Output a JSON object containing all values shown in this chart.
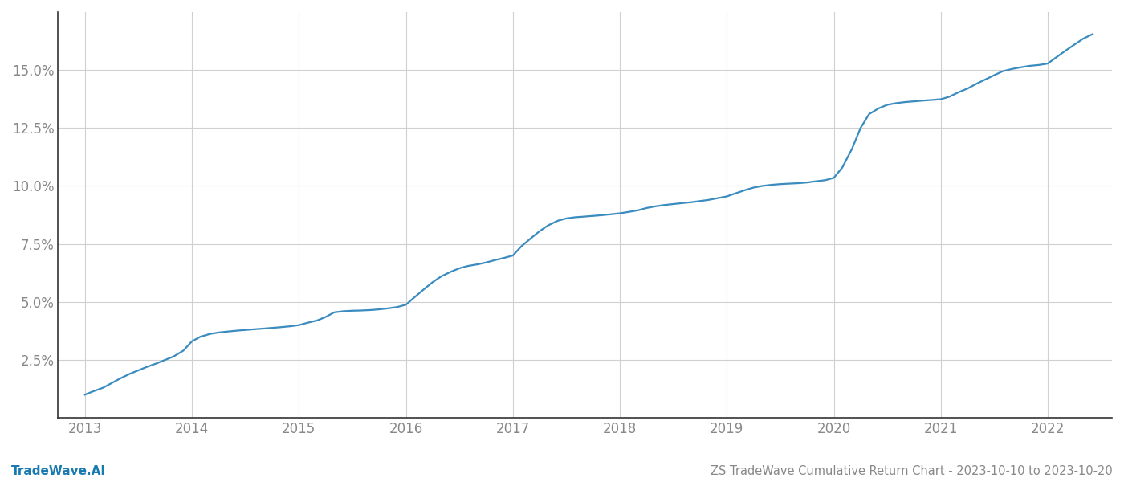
{
  "title": "ZS TradeWave Cumulative Return Chart - 2023-10-10 to 2023-10-20",
  "watermark": "TradeWave.AI",
  "line_color": "#3a8bbf",
  "background_color": "#ffffff",
  "grid_color": "#d0d0d0",
  "x_years": [
    2013,
    2014,
    2015,
    2016,
    2017,
    2018,
    2019,
    2020,
    2021,
    2022
  ],
  "x_data": [
    2013.0,
    2013.08,
    2013.17,
    2013.25,
    2013.33,
    2013.42,
    2013.5,
    2013.58,
    2013.67,
    2013.75,
    2013.83,
    2013.92,
    2014.0,
    2014.08,
    2014.17,
    2014.25,
    2014.33,
    2014.42,
    2014.5,
    2014.58,
    2014.67,
    2014.75,
    2014.83,
    2014.92,
    2015.0,
    2015.08,
    2015.17,
    2015.25,
    2015.33,
    2015.42,
    2015.5,
    2015.58,
    2015.67,
    2015.75,
    2015.83,
    2015.92,
    2016.0,
    2016.08,
    2016.17,
    2016.25,
    2016.33,
    2016.42,
    2016.5,
    2016.58,
    2016.67,
    2016.75,
    2016.83,
    2016.92,
    2017.0,
    2017.08,
    2017.17,
    2017.25,
    2017.33,
    2017.42,
    2017.5,
    2017.58,
    2017.67,
    2017.75,
    2017.83,
    2017.92,
    2018.0,
    2018.08,
    2018.17,
    2018.25,
    2018.33,
    2018.42,
    2018.5,
    2018.58,
    2018.67,
    2018.75,
    2018.83,
    2018.92,
    2019.0,
    2019.08,
    2019.17,
    2019.25,
    2019.33,
    2019.42,
    2019.5,
    2019.58,
    2019.67,
    2019.75,
    2019.83,
    2019.92,
    2020.0,
    2020.08,
    2020.17,
    2020.25,
    2020.33,
    2020.42,
    2020.5,
    2020.58,
    2020.67,
    2020.75,
    2020.83,
    2020.92,
    2021.0,
    2021.08,
    2021.17,
    2021.25,
    2021.33,
    2021.42,
    2021.5,
    2021.58,
    2021.67,
    2021.75,
    2021.83,
    2021.92,
    2022.0,
    2022.08,
    2022.17,
    2022.25,
    2022.33,
    2022.42
  ],
  "y_data": [
    1.0,
    1.15,
    1.3,
    1.5,
    1.7,
    1.9,
    2.05,
    2.2,
    2.35,
    2.5,
    2.65,
    2.9,
    3.3,
    3.5,
    3.62,
    3.68,
    3.72,
    3.76,
    3.79,
    3.82,
    3.85,
    3.88,
    3.91,
    3.95,
    4.0,
    4.1,
    4.2,
    4.35,
    4.55,
    4.6,
    4.62,
    4.63,
    4.65,
    4.68,
    4.72,
    4.78,
    4.88,
    5.2,
    5.55,
    5.85,
    6.1,
    6.3,
    6.45,
    6.55,
    6.62,
    6.7,
    6.8,
    6.9,
    7.0,
    7.4,
    7.75,
    8.05,
    8.3,
    8.5,
    8.6,
    8.65,
    8.68,
    8.71,
    8.74,
    8.78,
    8.82,
    8.88,
    8.95,
    9.05,
    9.12,
    9.18,
    9.22,
    9.26,
    9.3,
    9.35,
    9.4,
    9.48,
    9.55,
    9.68,
    9.82,
    9.93,
    10.0,
    10.05,
    10.08,
    10.1,
    10.12,
    10.15,
    10.2,
    10.25,
    10.35,
    10.8,
    11.6,
    12.5,
    13.1,
    13.35,
    13.5,
    13.57,
    13.62,
    13.65,
    13.68,
    13.71,
    13.74,
    13.85,
    14.05,
    14.2,
    14.4,
    14.6,
    14.78,
    14.95,
    15.05,
    15.12,
    15.18,
    15.22,
    15.28,
    15.55,
    15.85,
    16.1,
    16.35,
    16.55
  ],
  "yticks": [
    2.5,
    5.0,
    7.5,
    10.0,
    12.5,
    15.0
  ],
  "ytick_labels": [
    "2.5%",
    "5.0%",
    "7.5%",
    "10.0%",
    "12.5%",
    "15.0%"
  ],
  "ylim": [
    0.0,
    17.5
  ],
  "xlim": [
    2012.75,
    2022.6
  ],
  "title_fontsize": 10.5,
  "watermark_fontsize": 11,
  "tick_fontsize": 12,
  "tick_color": "#888888",
  "line_width": 1.6,
  "left_spine_color": "#333333",
  "bottom_spine_color": "#333333"
}
